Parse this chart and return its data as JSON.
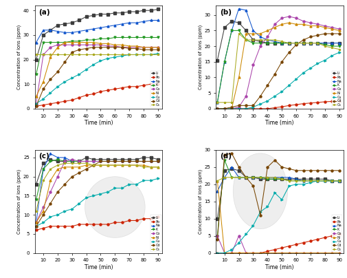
{
  "time": [
    5,
    10,
    15,
    20,
    25,
    30,
    35,
    40,
    45,
    50,
    55,
    60,
    65,
    70,
    75,
    80,
    85,
    90
  ],
  "ions": [
    "Li",
    "Pb",
    "Na",
    "K",
    "Co",
    "Ni",
    "Cu",
    "Cd",
    "Cs"
  ],
  "colors": {
    "Li": "#3d3d3d",
    "Pb": "#cc2200",
    "Na": "#1155cc",
    "K": "#229922",
    "Co": "#aa44aa",
    "Ni": "#cc8800",
    "Cu": "#00aaaa",
    "Cd": "#774400",
    "Cs": "#aaaa22"
  },
  "markers": {
    "Li": "s",
    "Pb": "o",
    "Na": "^",
    "K": "v",
    "Co": "o",
    "Ni": "^",
    "Cu": ">",
    "Cd": "o",
    "Cs": "*"
  },
  "subplot_a": {
    "Li": [
      20,
      30,
      32,
      34,
      34.5,
      35,
      36,
      37.5,
      38,
      38.5,
      38.5,
      39,
      39,
      39.5,
      39.5,
      40,
      40,
      40.5
    ],
    "Pb": [
      1,
      1.5,
      2,
      2.5,
      3,
      3.5,
      4.5,
      5.5,
      6,
      7,
      7.5,
      8,
      8.5,
      9,
      9,
      9.5,
      10,
      10
    ],
    "Na": [
      27,
      32,
      32,
      31.5,
      31,
      31,
      31.5,
      32,
      32.5,
      33,
      33.5,
      34,
      34.5,
      35,
      35,
      35.5,
      36,
      36
    ],
    "K": [
      14,
      27,
      27,
      27,
      27,
      27.5,
      27.5,
      28,
      28,
      28.5,
      28.5,
      29,
      29,
      29,
      29,
      29,
      29,
      29
    ],
    "Co": [
      2,
      22,
      25,
      26,
      26,
      26,
      26,
      26,
      26,
      26,
      25.5,
      25.5,
      25,
      25,
      25,
      25,
      25,
      25
    ],
    "Ni": [
      5,
      11,
      21,
      25,
      27,
      27,
      27,
      27,
      27,
      26.5,
      26.5,
      26,
      26,
      25.5,
      25.5,
      25,
      25,
      25
    ],
    "Cu": [
      2,
      4,
      6.5,
      9,
      11,
      12.5,
      14,
      16,
      18,
      19.5,
      20.5,
      21,
      21.5,
      22,
      22,
      22,
      22,
      22.5
    ],
    "Cd": [
      1,
      8,
      12,
      15,
      19,
      23,
      24,
      24.5,
      25,
      25,
      25,
      25,
      25,
      24.5,
      24.5,
      24,
      24,
      24
    ],
    "Cs": [
      22,
      22,
      22,
      22,
      22,
      22,
      22,
      22,
      22,
      22,
      22,
      22,
      22,
      22,
      22,
      22,
      22,
      22
    ]
  },
  "subplot_b": {
    "Li": [
      15.5,
      26,
      28,
      27.5,
      25,
      22,
      21.5,
      21,
      21,
      21,
      21,
      21,
      21,
      21,
      21,
      21,
      21,
      21
    ],
    "Pb": [
      0,
      0,
      0,
      0,
      0,
      0,
      0,
      0,
      0.3,
      0.6,
      1,
      1.3,
      1.6,
      1.8,
      2,
      2.2,
      2.3,
      2.5
    ],
    "Na": [
      2,
      15,
      25,
      32,
      31.5,
      25,
      23,
      22,
      21.5,
      21,
      21,
      21,
      21,
      21,
      21,
      21,
      21,
      21
    ],
    "K": [
      2,
      15,
      25,
      25,
      22,
      21,
      21,
      21,
      21,
      21,
      21,
      21,
      21,
      21,
      21,
      20.5,
      20,
      20
    ],
    "Co": [
      0,
      0,
      0,
      0.5,
      4,
      14,
      20,
      23,
      27,
      29,
      29.5,
      29,
      28,
      27.5,
      27,
      26.5,
      26,
      25.5
    ],
    "Ni": [
      0,
      0,
      0,
      10,
      24,
      24,
      24,
      25,
      26,
      27,
      27.5,
      27,
      27,
      26.5,
      26.5,
      26,
      25.5,
      25
    ],
    "Cu": [
      0,
      0,
      0,
      0,
      0,
      0.5,
      1.5,
      2.5,
      4,
      5.5,
      7.5,
      9.5,
      11.5,
      13,
      14.5,
      15.5,
      17,
      18
    ],
    "Cd": [
      0,
      0,
      0.5,
      1,
      1,
      1,
      4,
      7.5,
      11,
      15,
      18,
      20.5,
      22,
      23,
      23.5,
      24,
      24,
      24
    ],
    "Cs": [
      2,
      2,
      2,
      24,
      22,
      22,
      22,
      22,
      22,
      21.5,
      21,
      21,
      21,
      21,
      21,
      20,
      19.5,
      19
    ]
  },
  "subplot_c": {
    "Li": [
      18,
      23.5,
      24.5,
      24,
      24,
      24,
      24,
      25,
      24.5,
      24.5,
      24.5,
      24.5,
      24.5,
      24.5,
      24.5,
      25,
      25,
      24.5
    ],
    "Pb": [
      6,
      6.5,
      7,
      7,
      7,
      7,
      7.5,
      7.5,
      7.5,
      7.5,
      7.5,
      8,
      8,
      8.5,
      8.5,
      9,
      9,
      9.5
    ],
    "Na": [
      8,
      22,
      26,
      25,
      25,
      24,
      24,
      24,
      24,
      24,
      24,
      24,
      24,
      24,
      24,
      24,
      24,
      24
    ],
    "K": [
      14,
      22,
      24,
      24.5,
      24,
      24,
      24,
      24,
      24,
      24,
      24,
      24,
      24,
      24,
      24,
      24,
      24,
      24
    ],
    "Co": [
      8,
      12,
      16,
      20,
      24,
      24.5,
      24,
      24,
      24,
      24,
      24,
      24,
      24,
      24,
      24,
      24,
      24,
      24
    ],
    "Ni": [
      8,
      11,
      19,
      22,
      22.5,
      22.5,
      22.5,
      23,
      23,
      23,
      23,
      23,
      23,
      23,
      23,
      23,
      22.5,
      22.5
    ],
    "Cu": [
      7,
      8,
      9.5,
      10,
      11,
      11.5,
      13,
      14.5,
      15,
      15.5,
      16,
      17,
      17,
      18,
      18,
      19,
      19,
      19.5
    ],
    "Cd": [
      7,
      10,
      13,
      16,
      18,
      20,
      21,
      22,
      23,
      24,
      24,
      24,
      24,
      24,
      24,
      24,
      24,
      24
    ],
    "Cs": [
      11,
      19,
      22,
      23,
      23.5,
      23.5,
      23.5,
      23.5,
      23,
      23,
      23,
      23,
      23,
      23,
      23,
      22.5,
      22.5,
      22.5
    ]
  },
  "subplot_d": {
    "Li": [
      10,
      24,
      24.5,
      24,
      22,
      22,
      21.5,
      21.5,
      21.5,
      21.5,
      21.5,
      21.5,
      21.5,
      21.5,
      21.5,
      21.5,
      21,
      21
    ],
    "Pb": [
      0,
      0,
      0,
      0,
      0,
      0,
      0,
      0.5,
      1,
      1.5,
      2,
      2.5,
      3,
      3.5,
      4,
      4.5,
      5,
      5.5
    ],
    "Na": [
      18,
      22,
      25,
      22,
      22,
      22,
      22,
      22,
      22,
      22,
      22,
      21.5,
      21,
      21,
      21,
      21,
      21,
      21
    ],
    "K": [
      5,
      27,
      22,
      22,
      22,
      22,
      22,
      21.5,
      21.5,
      21.5,
      21,
      21,
      21,
      21,
      21,
      21,
      21,
      21
    ],
    "Co": [
      5,
      0,
      0,
      5,
      0,
      0,
      0,
      0,
      0,
      0,
      0,
      0,
      0,
      0,
      0,
      0,
      0,
      0
    ],
    "Ni": [
      21,
      0,
      0,
      0,
      0,
      0,
      0,
      0,
      0,
      0,
      0,
      0,
      0,
      0,
      0,
      0,
      0,
      0
    ],
    "Cu": [
      0,
      0,
      1,
      3,
      5.5,
      8,
      12,
      13.5,
      17.5,
      15.5,
      19.5,
      20,
      20,
      20.5,
      21,
      21,
      21,
      21
    ],
    "Cd": [
      4,
      28.5,
      29,
      25,
      22,
      19.5,
      11,
      25,
      27,
      25,
      24.5,
      24,
      24,
      24,
      24,
      24,
      24,
      24
    ],
    "Cs": [
      21,
      22,
      22,
      22,
      22,
      22,
      22,
      22,
      22,
      21.5,
      21,
      21,
      21,
      21,
      21,
      21,
      21,
      21
    ]
  },
  "ylim_a": [
    0,
    42
  ],
  "ylim_b": [
    0,
    33
  ],
  "ylim_c": [
    0,
    27
  ],
  "ylim_d": [
    0,
    30
  ],
  "yticks_a": [
    0,
    10,
    20,
    30,
    40
  ],
  "yticks_b": [
    0,
    5,
    10,
    15,
    20,
    25,
    30
  ],
  "yticks_c": [
    0,
    5,
    10,
    15,
    20,
    25
  ],
  "yticks_d": [
    0,
    5,
    10,
    15,
    20,
    25,
    30
  ],
  "xticks": [
    10,
    20,
    30,
    40,
    50,
    60,
    70,
    80,
    90
  ]
}
